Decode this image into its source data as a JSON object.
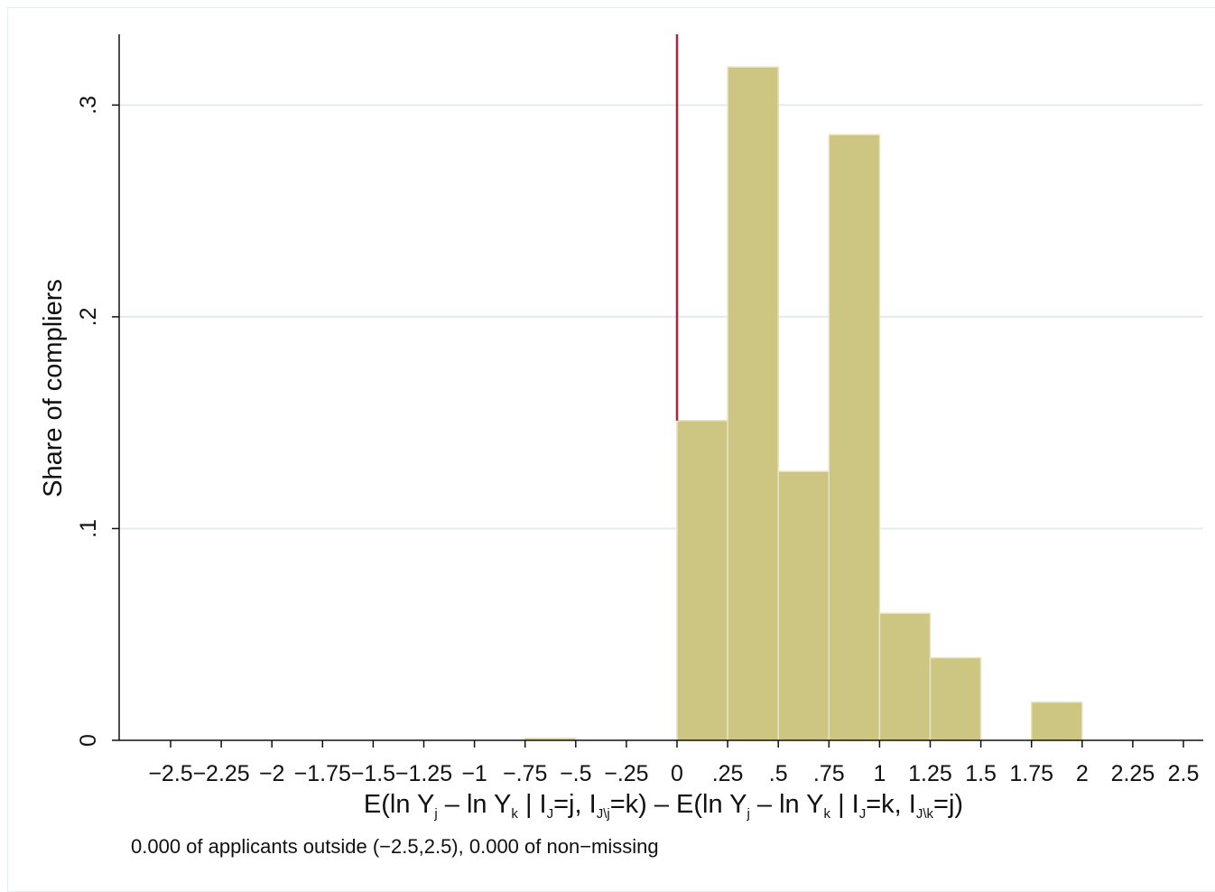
{
  "chart_data": {
    "type": "bar",
    "bin_edges": [
      -2.5,
      -2.25,
      -2,
      -1.75,
      -1.5,
      -1.25,
      -1,
      -0.75,
      -0.5,
      -0.25,
      0,
      0.25,
      0.5,
      0.75,
      1,
      1.25,
      1.5,
      1.75,
      2,
      2.25,
      2.5
    ],
    "values": [
      0,
      0,
      0,
      0,
      0,
      0,
      0,
      0.001,
      0,
      0,
      0.151,
      0.318,
      0.127,
      0.286,
      0.06,
      0.039,
      0,
      0.018,
      0,
      0
    ],
    "xlim": [
      -2.5,
      2.5
    ],
    "ylim": [
      0,
      0.33
    ],
    "ylabel": "Share of compliers",
    "xlabel": "E(ln Yj – ln Yk | IJ=j, IJ\\j=k) – E(ln Yj – ln Yk | IJ=k, IJ\\k=j)",
    "xticks": [
      "-2.5",
      "-2.25",
      "-2",
      "-1.75",
      "-1.5",
      "-1.25",
      "-1",
      "-.75",
      "-.5",
      "-.25",
      "0",
      ".25",
      ".5",
      ".75",
      "1",
      "1.25",
      "1.5",
      "1.75",
      "2",
      "2.25",
      "2.5"
    ],
    "xtick_labels": [
      "−2.5",
      "−2.25",
      "−2",
      "−1.75",
      "−1.5",
      "−1.25",
      "−1",
      "−.75",
      "−.5",
      "−.25",
      "0",
      ".25",
      ".5",
      ".75",
      "1",
      "1.25",
      "1.5",
      "1.75",
      "2",
      "2.25",
      "2.5"
    ],
    "yticks": [
      0,
      0.1,
      0.2,
      0.3
    ],
    "ytick_labels": [
      "0",
      ".1",
      ".2",
      ".3"
    ],
    "reference_line": {
      "x": 0,
      "color": "#b0203a"
    },
    "bar_color": "#cdc582",
    "bar_edge_color": "#e8e4c0",
    "grid": "horizontal",
    "note": "0.000 of applicants outside (−2.5,2.5), 0.000 of non−missing"
  },
  "xlabel_parts": {
    "open1": "E(ln Y",
    "sub_j1": "j",
    "minus1": " – ln Y",
    "sub_k1": "k",
    "cond1": " | I",
    "sub_J1": "J",
    "eq1": "=j, I",
    "sub_Jj": "J\\j",
    "eq2": "=k) – E(ln Y",
    "sub_j2": "j",
    "minus2": " – ln Y",
    "sub_k2": "k",
    "cond2": " | I",
    "sub_J2": "J",
    "eq3": "=k, I",
    "sub_Jk": "J\\k",
    "eq4": "=j)"
  }
}
